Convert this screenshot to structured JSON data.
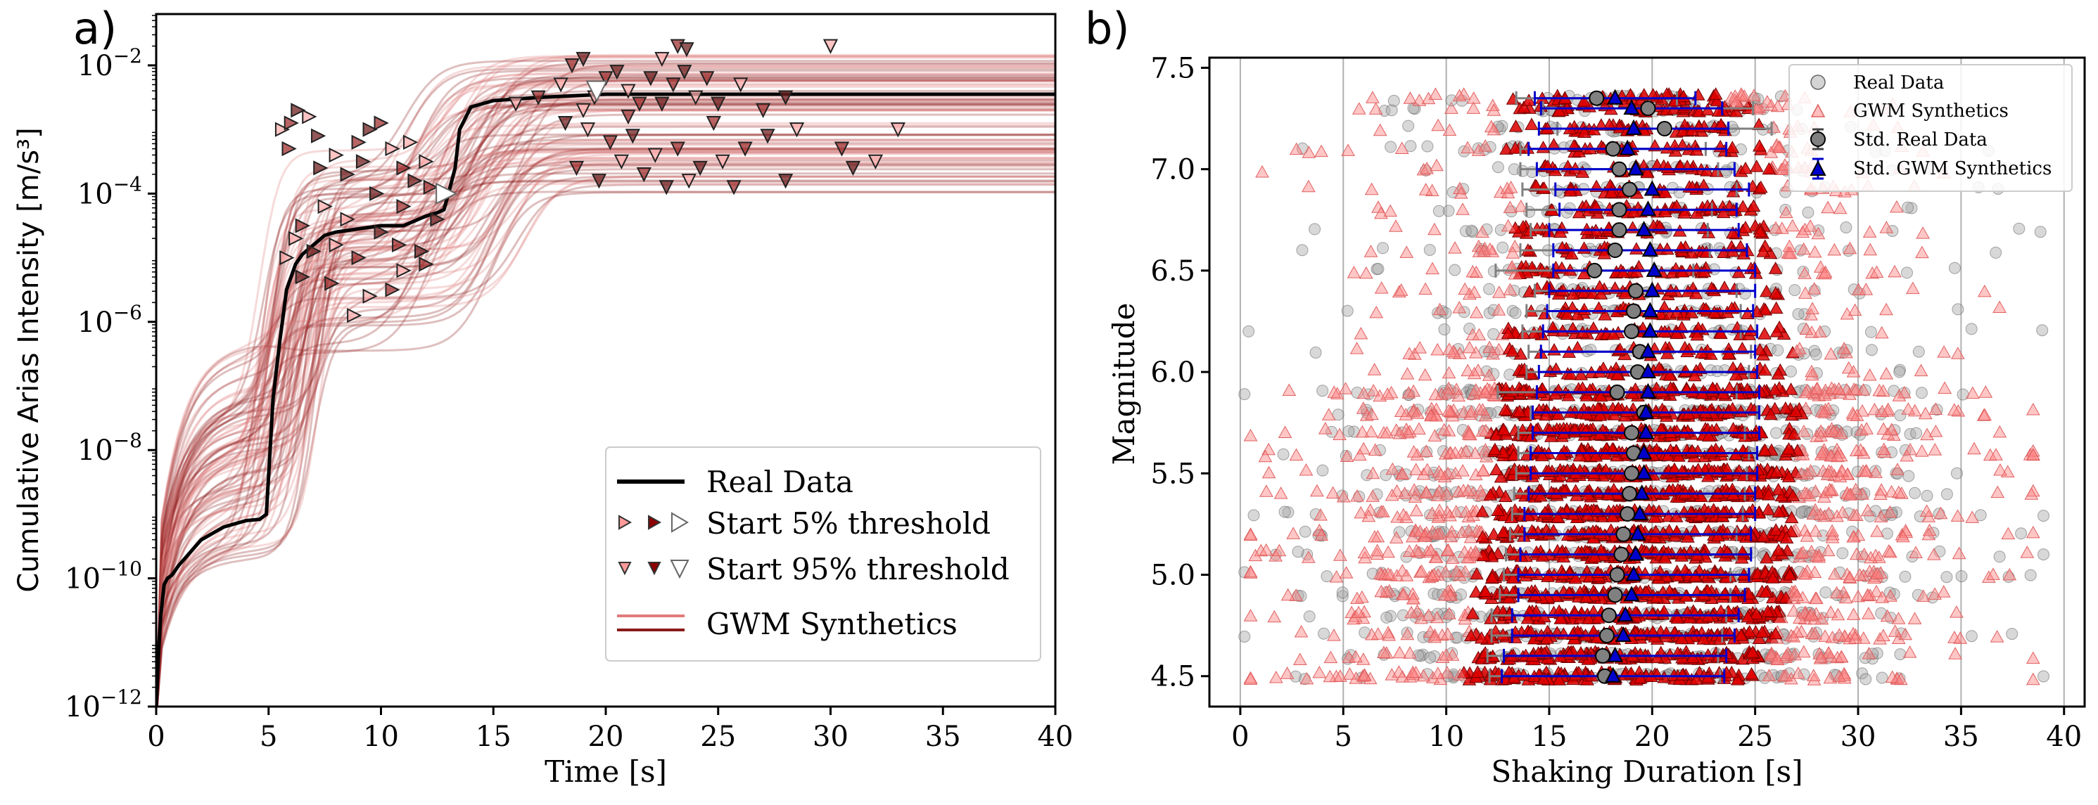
{
  "chart_data": [
    {
      "panel_label": "a)",
      "type": "line",
      "xlabel": "Time [s]",
      "ylabel": "Cumulative Arias Intensity [m/s³]",
      "xlim": [
        0,
        40
      ],
      "ylim_log10": [
        -12,
        -1.2
      ],
      "yscale": "log",
      "xticks": [
        0,
        5,
        10,
        15,
        20,
        25,
        30,
        35,
        40
      ],
      "yticks": [
        {
          "base": "10",
          "exp": "−12",
          "value": -12
        },
        {
          "base": "10",
          "exp": "−10",
          "value": -10
        },
        {
          "base": "10",
          "exp": "−8",
          "value": -8
        },
        {
          "base": "10",
          "exp": "−6",
          "value": -6
        },
        {
          "base": "10",
          "exp": "−4",
          "value": -4
        },
        {
          "base": "10",
          "exp": "−2",
          "value": -2
        }
      ],
      "real_data": {
        "name": "Real Data",
        "color": "#000000",
        "t": [
          0,
          0.1,
          0.2,
          0.35,
          0.5,
          0.7,
          1.0,
          1.5,
          2.0,
          3.0,
          4.0,
          4.6,
          4.9,
          5.0,
          5.2,
          5.5,
          5.8,
          6.2,
          6.5,
          7.0,
          7.5,
          8.0,
          9.0,
          10.0,
          11.0,
          12.0,
          12.5,
          12.8,
          13.0,
          13.3,
          13.5,
          14.0,
          15.0,
          17.0,
          20.0,
          25.0,
          30.0,
          35.0,
          40.0
        ],
        "log10_y": [
          -12.0,
          -11.2,
          -10.6,
          -10.1,
          -10.0,
          -9.95,
          -9.8,
          -9.6,
          -9.4,
          -9.2,
          -9.1,
          -9.08,
          -9.0,
          -8.4,
          -7.2,
          -6.3,
          -5.5,
          -5.1,
          -4.95,
          -4.8,
          -4.65,
          -4.6,
          -4.55,
          -4.5,
          -4.5,
          -4.35,
          -4.3,
          -4.25,
          -4.0,
          -3.6,
          -3.0,
          -2.65,
          -2.55,
          -2.5,
          -2.45,
          -2.45,
          -2.45,
          -2.45,
          -2.45
        ]
      },
      "synthetics": {
        "name": "GWM Synthetics",
        "count": 90,
        "final_log10_range": [
          -4.0,
          -1.8
        ],
        "colors": [
          "#e07b7b",
          "#8b1a1a"
        ]
      },
      "start5_markers": {
        "name": "Start 5% threshold",
        "points": [
          [
            5.6,
            -3.0
          ],
          [
            6.0,
            -2.9
          ],
          [
            6.3,
            -2.7
          ],
          [
            6.8,
            -2.8
          ],
          [
            5.9,
            -3.3
          ],
          [
            7.2,
            -3.1
          ],
          [
            8.0,
            -3.4
          ],
          [
            9.0,
            -3.2
          ],
          [
            9.5,
            -3.0
          ],
          [
            10.5,
            -3.3
          ],
          [
            11.0,
            -3.6
          ],
          [
            11.5,
            -3.8
          ],
          [
            12.0,
            -3.5
          ],
          [
            10.0,
            -2.9
          ],
          [
            8.5,
            -3.7
          ],
          [
            7.5,
            -4.2
          ],
          [
            6.5,
            -4.5
          ],
          [
            7.0,
            -4.9
          ],
          [
            8.0,
            -4.8
          ],
          [
            9.0,
            -5.0
          ],
          [
            10.0,
            -4.6
          ],
          [
            11.0,
            -5.2
          ],
          [
            12.0,
            -5.1
          ],
          [
            6.5,
            -5.3
          ],
          [
            9.5,
            -5.6
          ],
          [
            11.0,
            -4.2
          ],
          [
            12.5,
            -4.4
          ],
          [
            8.5,
            -4.4
          ],
          [
            10.5,
            -5.5
          ],
          [
            9.8,
            -4.0
          ],
          [
            6.2,
            -4.7
          ],
          [
            7.8,
            -5.4
          ],
          [
            11.8,
            -4.9
          ],
          [
            5.8,
            -5.0
          ],
          [
            12.2,
            -3.9
          ],
          [
            9.2,
            -3.5
          ],
          [
            8.8,
            -5.9
          ],
          [
            10.8,
            -4.8
          ],
          [
            7.3,
            -3.6
          ],
          [
            11.3,
            -3.2
          ]
        ],
        "white_marker": [
          12.9,
          -4.0
        ]
      },
      "start95_markers": {
        "name": "Start 95% threshold",
        "points": [
          [
            18.0,
            -2.3
          ],
          [
            18.5,
            -2.0
          ],
          [
            19.0,
            -1.9
          ],
          [
            19.5,
            -2.5
          ],
          [
            20.0,
            -2.2
          ],
          [
            20.5,
            -2.1
          ],
          [
            21.0,
            -2.4
          ],
          [
            21.5,
            -2.6
          ],
          [
            22.0,
            -2.2
          ],
          [
            22.5,
            -1.9
          ],
          [
            23.0,
            -2.3
          ],
          [
            23.5,
            -2.1
          ],
          [
            24.0,
            -2.5
          ],
          [
            24.5,
            -2.2
          ],
          [
            25.0,
            -2.6
          ],
          [
            26.0,
            -2.3
          ],
          [
            27.0,
            -2.7
          ],
          [
            28.0,
            -2.5
          ],
          [
            30.0,
            -1.7
          ],
          [
            23.2,
            -1.7
          ],
          [
            23.6,
            -1.75
          ],
          [
            16.0,
            -2.6
          ],
          [
            17.0,
            -2.5
          ],
          [
            18.2,
            -2.9
          ],
          [
            19.2,
            -3.0
          ],
          [
            20.2,
            -3.2
          ],
          [
            21.2,
            -3.1
          ],
          [
            22.2,
            -3.4
          ],
          [
            23.2,
            -3.3
          ],
          [
            24.2,
            -3.6
          ],
          [
            25.2,
            -3.5
          ],
          [
            26.2,
            -3.3
          ],
          [
            27.2,
            -3.1
          ],
          [
            28.5,
            -3.0
          ],
          [
            30.5,
            -3.3
          ],
          [
            31.0,
            -3.6
          ],
          [
            33.0,
            -3.0
          ],
          [
            18.7,
            -3.6
          ],
          [
            19.7,
            -3.8
          ],
          [
            20.7,
            -3.5
          ],
          [
            21.7,
            -3.7
          ],
          [
            22.7,
            -3.9
          ],
          [
            23.7,
            -3.8
          ],
          [
            25.7,
            -3.9
          ],
          [
            28.0,
            -3.8
          ],
          [
            32.0,
            -3.5
          ],
          [
            21.0,
            -2.8
          ],
          [
            22.5,
            -2.6
          ],
          [
            19.0,
            -2.7
          ],
          [
            24.8,
            -2.9
          ]
        ],
        "white_marker": [
          19.6,
          -2.4
        ]
      },
      "legend": [
        {
          "label": "Real Data"
        },
        {
          "label": "Start 5% threshold"
        },
        {
          "label": "Start 95% threshold"
        },
        {
          "label": "GWM Synthetics"
        }
      ]
    },
    {
      "panel_label": "b)",
      "type": "scatter",
      "xlabel": "Shaking Duration [s]",
      "ylabel": "Magnitude",
      "xlim": [
        -1.5,
        41
      ],
      "ylim": [
        4.35,
        7.55
      ],
      "xticks": [
        0,
        5,
        10,
        15,
        20,
        25,
        30,
        35,
        40
      ],
      "yticks": [
        4.5,
        5.0,
        5.5,
        6.0,
        6.5,
        7.0,
        7.5
      ],
      "grid": "vertical",
      "magnitude_bins": [
        4.5,
        4.6,
        4.7,
        4.8,
        4.9,
        5.0,
        5.1,
        5.2,
        5.3,
        5.4,
        5.5,
        5.6,
        5.7,
        5.8,
        5.9,
        6.0,
        6.1,
        6.2,
        6.3,
        6.4,
        6.5,
        6.6,
        6.7,
        6.8,
        6.9,
        7.0,
        7.1,
        7.2,
        7.3,
        7.35
      ],
      "std_real": {
        "name": "Std. Real Data",
        "mean": [
          17.7,
          17.6,
          17.8,
          17.9,
          18.2,
          18.3,
          18.5,
          18.6,
          18.8,
          18.9,
          19.0,
          19.1,
          19.0,
          19.6,
          18.3,
          19.3,
          19.4,
          19.0,
          19.1,
          19.2,
          17.2,
          18.2,
          18.4,
          18.4,
          18.9,
          18.4,
          18.1,
          20.6,
          19.8,
          17.3
        ],
        "std": [
          5.6,
          5.6,
          5.6,
          5.7,
          5.6,
          5.5,
          5.6,
          5.5,
          5.6,
          5.6,
          5.6,
          5.6,
          5.5,
          5.5,
          5.8,
          5.4,
          5.4,
          5.3,
          5.2,
          4.9,
          4.8,
          4.6,
          4.3,
          4.5,
          5.2,
          4.8,
          4.5,
          5.2,
          5.1,
          3.9
        ],
        "color": "#808080"
      },
      "std_gwm": {
        "name": "Std. GWM Synthetics",
        "mean": [
          18.1,
          18.2,
          18.6,
          18.7,
          19.0,
          19.1,
          19.2,
          19.3,
          19.4,
          19.5,
          19.6,
          19.6,
          19.7,
          19.7,
          19.8,
          19.8,
          19.8,
          19.9,
          19.9,
          20.0,
          20.1,
          19.9,
          19.6,
          19.8,
          20.0,
          19.2,
          18.8,
          19.1,
          19.0,
          18.2
        ],
        "std": [
          5.4,
          5.4,
          5.4,
          5.5,
          5.5,
          5.6,
          5.6,
          5.5,
          5.6,
          5.5,
          5.5,
          5.5,
          5.5,
          5.5,
          5.4,
          5.3,
          5.2,
          5.2,
          5.0,
          5.0,
          4.9,
          4.7,
          4.6,
          4.3,
          4.7,
          4.8,
          4.8,
          4.6,
          4.4,
          3.9
        ],
        "color": "#0000cc"
      },
      "scatter_series": [
        {
          "name": "Real Data",
          "marker": "circle",
          "color": "#a9a9a9"
        },
        {
          "name": "GWM Synthetics",
          "marker": "triangle",
          "color": "#e60000"
        }
      ],
      "legend": [
        {
          "label": "Real Data"
        },
        {
          "label": "GWM Synthetics"
        },
        {
          "label": "Std. Real Data"
        },
        {
          "label": "Std. GWM Synthetics"
        }
      ]
    }
  ]
}
